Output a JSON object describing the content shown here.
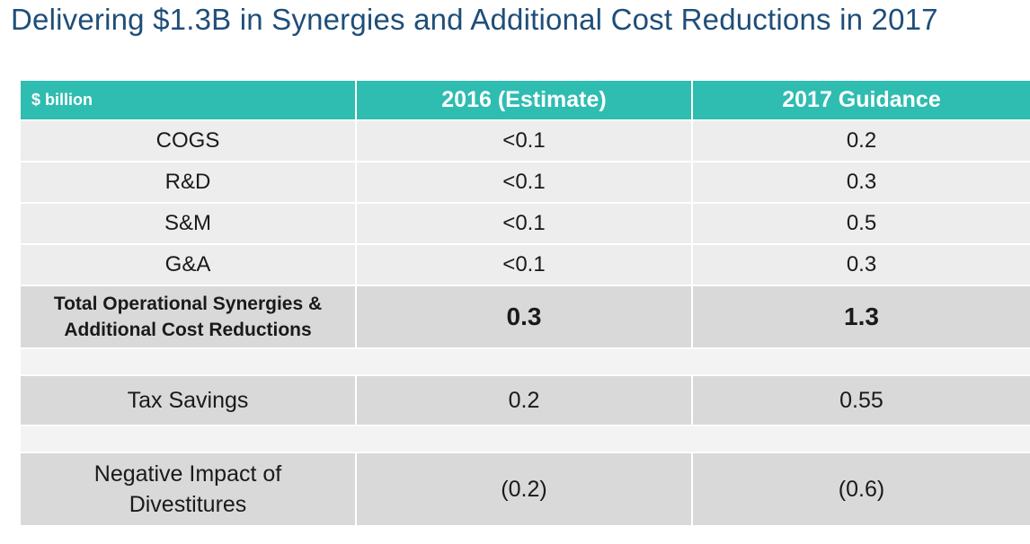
{
  "title": "Delivering $1.3B in Synergies and Additional Cost Reductions in 2017",
  "table": {
    "headers": [
      "$ billion",
      "2016 (Estimate)",
      "2017 Guidance"
    ],
    "rows": [
      {
        "label": "COGS",
        "y2016": "<0.1",
        "y2017": "0.2"
      },
      {
        "label": "R&D",
        "y2016": "<0.1",
        "y2017": "0.3"
      },
      {
        "label": "S&M",
        "y2016": "<0.1",
        "y2017": "0.5"
      },
      {
        "label": "G&A",
        "y2016": "<0.1",
        "y2017": "0.3"
      }
    ],
    "total": {
      "label": "Total Operational Synergies & Additional Cost Reductions",
      "y2016": "0.3",
      "y2017": "1.3"
    },
    "tax": {
      "label": "Tax Savings",
      "y2016": "0.2",
      "y2017": "0.55"
    },
    "negative": {
      "label": "Negative Impact of Divestitures",
      "y2016": "(0.2)",
      "y2017": "(0.6)"
    }
  },
  "colors": {
    "title": "#1f4e79",
    "header_bg": "#2fbcb1",
    "row_bg": "#ededed",
    "highlight_bg": "#d9d9d9"
  }
}
